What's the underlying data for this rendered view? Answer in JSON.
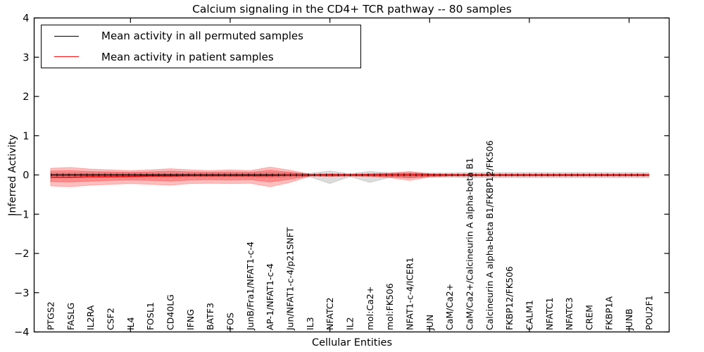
{
  "chart_data": {
    "type": "line",
    "title": "Calcium signaling in the CD4+ TCR pathway -- 80 samples",
    "xlabel": "Cellular Entities",
    "ylabel": "Inferred Activity",
    "ylim": [
      -4,
      4
    ],
    "yticks": [
      -4,
      -3,
      -2,
      -1,
      0,
      1,
      2,
      3,
      4
    ],
    "grid": false,
    "legend_position": "upper left",
    "categories": [
      "PTGS2",
      "FASLG",
      "IL2RA",
      "CSF2",
      "IL4",
      "FOSL1",
      "CD40LG",
      "IFNG",
      "BATF3",
      "FOS",
      "JunB/Fra1/NFAT1-c-4",
      "AP-1/NFAT1-c-4",
      "Jun/NFAT1-c-4/p21SNFT",
      "IL3",
      "NFATC2",
      "IL2",
      "mol:Ca2+",
      "mol:FK506",
      "NFAT1-c-4/ICER1",
      "JUN",
      "CaM/Ca2+",
      "CaM/Ca2+/Calcineurin A alpha-beta B1",
      "Calcineurin A alpha-beta B1/FKBP12/FK506",
      "FKBP12/FK506",
      "CALM1",
      "NFATC1",
      "NFATC3",
      "CREM",
      "FKBP1A",
      "JUNB",
      "POU2F1"
    ],
    "series": [
      {
        "name": "Mean activity in all permuted samples",
        "color": "#000000",
        "values": [
          0,
          0,
          0,
          0,
          0,
          0,
          0,
          0,
          0,
          0,
          0,
          0,
          0,
          0,
          0,
          0,
          0,
          0,
          0,
          0,
          0,
          0,
          0,
          0,
          0,
          0,
          0,
          0,
          0,
          0,
          0
        ]
      },
      {
        "name": "Mean activity in patient samples",
        "color": "#ff0000",
        "values": [
          -0.06,
          -0.06,
          -0.05,
          -0.05,
          -0.04,
          -0.03,
          -0.03,
          -0.02,
          -0.02,
          -0.02,
          -0.02,
          -0.02,
          -0.01,
          -0.01,
          0,
          0,
          0,
          0,
          0,
          0,
          0,
          0,
          0,
          0,
          0,
          0,
          0,
          0,
          0,
          0,
          0
        ]
      }
    ],
    "bands": [
      {
        "name": "permuted-samples-spread",
        "fill": "rgba(130,130,130,0.28)",
        "upper": [
          0.05,
          0.05,
          0.05,
          0.05,
          0.05,
          0.05,
          0.05,
          0.05,
          0.05,
          0.05,
          0.05,
          0.06,
          0.05,
          0.04,
          0.1,
          0.03,
          0.09,
          0.05,
          0.05,
          0.05,
          0.05,
          0.06,
          0.06,
          0.06,
          0.06,
          0.06,
          0.06,
          0.06,
          0.06,
          0.06,
          0.06
        ],
        "lower": [
          -0.05,
          -0.05,
          -0.05,
          -0.05,
          -0.05,
          -0.05,
          -0.05,
          -0.05,
          -0.05,
          -0.05,
          -0.05,
          -0.06,
          -0.05,
          -0.05,
          -0.22,
          -0.04,
          -0.19,
          -0.06,
          -0.06,
          -0.06,
          -0.06,
          -0.07,
          -0.07,
          -0.07,
          -0.07,
          -0.07,
          -0.07,
          -0.07,
          -0.07,
          -0.07,
          -0.07
        ]
      },
      {
        "name": "patient-samples-spread-outer",
        "fill": "rgba(255,0,0,0.25)",
        "upper": [
          0.17,
          0.19,
          0.15,
          0.13,
          0.11,
          0.13,
          0.16,
          0.13,
          0.11,
          0.13,
          0.11,
          0.2,
          0.12,
          0.02,
          0.03,
          0.02,
          0.03,
          0.05,
          0.09,
          0.03,
          0.02,
          0.02,
          0.02,
          0.02,
          0.02,
          0.02,
          0.02,
          0.02,
          0.02,
          0.02,
          0.02
        ],
        "lower": [
          -0.28,
          -0.3,
          -0.26,
          -0.24,
          -0.22,
          -0.24,
          -0.26,
          -0.22,
          -0.21,
          -0.22,
          -0.21,
          -0.3,
          -0.19,
          -0.03,
          -0.04,
          -0.03,
          -0.04,
          -0.07,
          -0.14,
          -0.05,
          -0.03,
          -0.03,
          -0.03,
          -0.03,
          -0.03,
          -0.03,
          -0.03,
          -0.03,
          -0.03,
          -0.03,
          -0.03
        ]
      },
      {
        "name": "patient-samples-spread-inner",
        "fill": "rgba(255,0,0,0.27)",
        "upper": [
          0.1,
          0.11,
          0.09,
          0.08,
          0.07,
          0.08,
          0.1,
          0.08,
          0.07,
          0.08,
          0.07,
          0.12,
          0.07,
          0.01,
          0.02,
          0.01,
          0.02,
          0.03,
          0.05,
          0.02,
          0.01,
          0.01,
          0.01,
          0.01,
          0.01,
          0.01,
          0.01,
          0.01,
          0.01,
          0.01,
          0.01
        ],
        "lower": [
          -0.17,
          -0.18,
          -0.16,
          -0.14,
          -0.13,
          -0.14,
          -0.16,
          -0.13,
          -0.12,
          -0.13,
          -0.12,
          -0.18,
          -0.11,
          -0.02,
          -0.03,
          -0.02,
          -0.03,
          -0.04,
          -0.08,
          -0.03,
          -0.02,
          -0.02,
          -0.02,
          -0.02,
          -0.02,
          -0.02,
          -0.02,
          -0.02,
          -0.02,
          -0.02,
          -0.02
        ]
      }
    ]
  }
}
